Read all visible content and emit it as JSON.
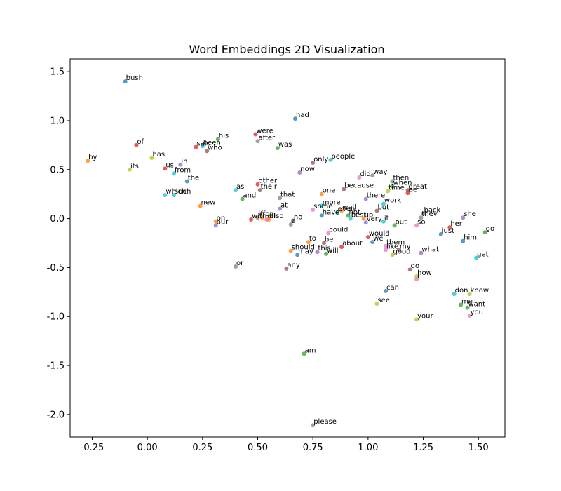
{
  "chart_data": {
    "type": "scatter",
    "title": "Word Embeddings 2D Visualization",
    "xlabel": "",
    "ylabel": "",
    "xlim": [
      -0.35,
      1.62
    ],
    "ylim": [
      -2.23,
      1.63
    ],
    "xticks": [
      -0.25,
      0.0,
      0.25,
      0.5,
      0.75,
      1.0,
      1.25,
      1.5
    ],
    "yticks": [
      -2.0,
      -1.5,
      -1.0,
      -0.5,
      0.0,
      0.5,
      1.0,
      1.5
    ],
    "grid": false,
    "palette": [
      "#1f77b4",
      "#ff7f0e",
      "#2ca02c",
      "#d62728",
      "#9467bd",
      "#8c564b",
      "#e377c2",
      "#7f7f7f",
      "#bcbd22",
      "#17becf"
    ],
    "points": [
      {
        "word": "bush",
        "x": -0.1,
        "y": 1.4,
        "color": "#1f77b4"
      },
      {
        "word": "had",
        "x": 0.67,
        "y": 1.02,
        "color": "#1f77b4"
      },
      {
        "word": "his",
        "x": 0.32,
        "y": 0.81,
        "color": "#2ca02c"
      },
      {
        "word": "were",
        "x": 0.49,
        "y": 0.86,
        "color": "#d62728"
      },
      {
        "word": "after",
        "x": 0.5,
        "y": 0.79,
        "color": "#7f7f7f"
      },
      {
        "word": "of",
        "x": -0.05,
        "y": 0.75,
        "color": "#d62728"
      },
      {
        "word": "been",
        "x": 0.25,
        "y": 0.74,
        "color": "#17becf"
      },
      {
        "word": "said",
        "x": 0.22,
        "y": 0.73,
        "color": "#d62728"
      },
      {
        "word": "who",
        "x": 0.27,
        "y": 0.69,
        "color": "#8c564b"
      },
      {
        "word": "was",
        "x": 0.59,
        "y": 0.72,
        "color": "#2ca02c"
      },
      {
        "word": "has",
        "x": 0.02,
        "y": 0.62,
        "color": "#bcbd22"
      },
      {
        "word": "by",
        "x": -0.27,
        "y": 0.59,
        "color": "#ff7f0e"
      },
      {
        "word": "in",
        "x": 0.15,
        "y": 0.55,
        "color": "#9467bd"
      },
      {
        "word": "only",
        "x": 0.75,
        "y": 0.57,
        "color": "#8c564b"
      },
      {
        "word": "people",
        "x": 0.83,
        "y": 0.6,
        "color": "#17becf"
      },
      {
        "word": "its",
        "x": -0.08,
        "y": 0.5,
        "color": "#bcbd22"
      },
      {
        "word": "us",
        "x": 0.08,
        "y": 0.51,
        "color": "#d62728"
      },
      {
        "word": "from",
        "x": 0.12,
        "y": 0.46,
        "color": "#17becf"
      },
      {
        "word": "now",
        "x": 0.69,
        "y": 0.47,
        "color": "#9467bd"
      },
      {
        "word": "did",
        "x": 0.96,
        "y": 0.42,
        "color": "#e377c2"
      },
      {
        "word": "way",
        "x": 1.02,
        "y": 0.44,
        "color": "#7f7f7f"
      },
      {
        "word": "the",
        "x": 0.18,
        "y": 0.38,
        "color": "#1f77b4"
      },
      {
        "word": "then",
        "x": 1.11,
        "y": 0.38,
        "color": "#7f7f7f"
      },
      {
        "word": "other",
        "x": 0.5,
        "y": 0.35,
        "color": "#d62728"
      },
      {
        "word": "when",
        "x": 1.11,
        "y": 0.33,
        "color": "#2ca02c"
      },
      {
        "word": "as",
        "x": 0.4,
        "y": 0.29,
        "color": "#17becf"
      },
      {
        "word": "their",
        "x": 0.51,
        "y": 0.29,
        "color": "#8c564b"
      },
      {
        "word": "because",
        "x": 0.89,
        "y": 0.3,
        "color": "#8c564b"
      },
      {
        "word": "time",
        "x": 1.09,
        "y": 0.28,
        "color": "#bcbd22"
      },
      {
        "word": "great",
        "x": 1.18,
        "y": 0.29,
        "color": "#8c564b"
      },
      {
        "word": "be",
        "x": 1.18,
        "y": 0.26,
        "color": "#d62728"
      },
      {
        "word": "which",
        "x": 0.08,
        "y": 0.24,
        "color": "#17becf"
      },
      {
        "word": "such",
        "x": 0.12,
        "y": 0.24,
        "color": "#17becf"
      },
      {
        "word": "one",
        "x": 0.79,
        "y": 0.25,
        "color": "#ff7f0e"
      },
      {
        "word": "that",
        "x": 0.6,
        "y": 0.21,
        "color": "#7f7f7f"
      },
      {
        "word": "and",
        "x": 0.43,
        "y": 0.2,
        "color": "#2ca02c"
      },
      {
        "word": "there",
        "x": 0.99,
        "y": 0.2,
        "color": "#9467bd"
      },
      {
        "word": "work",
        "x": 1.07,
        "y": 0.15,
        "color": "#17becf"
      },
      {
        "word": "new",
        "x": 0.24,
        "y": 0.13,
        "color": "#ff7f0e"
      },
      {
        "word": "more",
        "x": 0.79,
        "y": 0.13,
        "color": "#17becf"
      },
      {
        "word": "at",
        "x": 0.6,
        "y": 0.1,
        "color": "#9467bd"
      },
      {
        "word": "some",
        "x": 0.75,
        "y": 0.09,
        "color": "#e377c2"
      },
      {
        "word": "well",
        "x": 0.88,
        "y": 0.08,
        "color": "#ff7f0e"
      },
      {
        "word": "even",
        "x": 0.86,
        "y": 0.06,
        "color": "#17becf"
      },
      {
        "word": "but",
        "x": 1.04,
        "y": 0.08,
        "color": "#8c564b"
      },
      {
        "word": "back",
        "x": 1.25,
        "y": 0.05,
        "color": "#7f7f7f"
      },
      {
        "word": "have",
        "x": 0.79,
        "y": 0.03,
        "color": "#1f77b4"
      },
      {
        "word": "not",
        "x": 0.91,
        "y": 0.03,
        "color": "#2ca02c"
      },
      {
        "word": "they",
        "x": 1.24,
        "y": 0.01,
        "color": "#7f7f7f"
      },
      {
        "word": "she",
        "x": 1.43,
        "y": 0.01,
        "color": "#9467bd"
      },
      {
        "word": "if",
        "x": 0.5,
        "y": 0.01,
        "color": "#7f7f7f"
      },
      {
        "word": "for",
        "x": 0.52,
        "y": 0.01,
        "color": "#ff7f0e"
      },
      {
        "word": "best",
        "x": 0.92,
        "y": 0.0,
        "color": "#17becf"
      },
      {
        "word": "up",
        "x": 0.98,
        "y": 0.0,
        "color": "#ff7f0e"
      },
      {
        "word": "with",
        "x": 0.47,
        "y": -0.01,
        "color": "#d62728"
      },
      {
        "word": "all",
        "x": 0.54,
        "y": -0.01,
        "color": "#e377c2"
      },
      {
        "word": "also",
        "x": 0.55,
        "y": -0.01,
        "color": "#ff7f0e"
      },
      {
        "word": "no",
        "x": 0.66,
        "y": -0.02,
        "color": "#7f7f7f"
      },
      {
        "word": "very",
        "x": 0.99,
        "y": -0.04,
        "color": "#9467bd"
      },
      {
        "word": "it",
        "x": 1.07,
        "y": -0.03,
        "color": "#17becf"
      },
      {
        "word": "on",
        "x": 0.31,
        "y": -0.03,
        "color": "#ff7f0e"
      },
      {
        "word": "our",
        "x": 0.31,
        "y": -0.07,
        "color": "#9467bd"
      },
      {
        "word": "a",
        "x": 0.65,
        "y": -0.06,
        "color": "#7f7f7f"
      },
      {
        "word": "out",
        "x": 1.12,
        "y": -0.07,
        "color": "#2ca02c"
      },
      {
        "word": "so",
        "x": 1.22,
        "y": -0.07,
        "color": "#e377c2"
      },
      {
        "word": "her",
        "x": 1.37,
        "y": -0.09,
        "color": "#d62728"
      },
      {
        "word": "could",
        "x": 0.82,
        "y": -0.15,
        "color": "#e377c2"
      },
      {
        "word": "just",
        "x": 1.33,
        "y": -0.16,
        "color": "#1f77b4"
      },
      {
        "word": "go",
        "x": 1.53,
        "y": -0.14,
        "color": "#2ca02c"
      },
      {
        "word": "would",
        "x": 1.0,
        "y": -0.19,
        "color": "#d62728"
      },
      {
        "word": "to",
        "x": 0.73,
        "y": -0.24,
        "color": "#ff7f0e"
      },
      {
        "word": "be",
        "x": 0.8,
        "y": -0.25,
        "color": "#8c564b"
      },
      {
        "word": "we",
        "x": 1.02,
        "y": -0.24,
        "color": "#1f77b4"
      },
      {
        "word": "him",
        "x": 1.43,
        "y": -0.23,
        "color": "#1f77b4"
      },
      {
        "word": "them",
        "x": 1.08,
        "y": -0.28,
        "color": "#e377c2"
      },
      {
        "word": "about",
        "x": 0.88,
        "y": -0.29,
        "color": "#d62728"
      },
      {
        "word": "like",
        "x": 1.08,
        "y": -0.32,
        "color": "#e377c2"
      },
      {
        "word": "my",
        "x": 1.14,
        "y": -0.32,
        "color": "#8c564b"
      },
      {
        "word": "should",
        "x": 0.65,
        "y": -0.33,
        "color": "#ff7f0e"
      },
      {
        "word": "this",
        "x": 0.77,
        "y": -0.34,
        "color": "#9467bd"
      },
      {
        "word": "will",
        "x": 0.81,
        "y": -0.36,
        "color": "#2ca02c"
      },
      {
        "word": "what",
        "x": 1.24,
        "y": -0.35,
        "color": "#9467bd"
      },
      {
        "word": "may",
        "x": 0.68,
        "y": -0.37,
        "color": "#1f77b4"
      },
      {
        "word": "good",
        "x": 1.11,
        "y": -0.37,
        "color": "#bcbd22"
      },
      {
        "word": "get",
        "x": 1.49,
        "y": -0.4,
        "color": "#17becf"
      },
      {
        "word": "or",
        "x": 0.4,
        "y": -0.49,
        "color": "#7f7f7f"
      },
      {
        "word": "any",
        "x": 0.63,
        "y": -0.51,
        "color": "#8c564b"
      },
      {
        "word": "do",
        "x": 1.19,
        "y": -0.52,
        "color": "#8c564b"
      },
      {
        "word": "how",
        "x": 1.22,
        "y": -0.59,
        "color": "#bcbd22"
      },
      {
        "word": "i",
        "x": 1.22,
        "y": -0.62,
        "color": "#e377c2"
      },
      {
        "word": "can",
        "x": 1.08,
        "y": -0.74,
        "color": "#1f77b4"
      },
      {
        "word": "don",
        "x": 1.39,
        "y": -0.77,
        "color": "#17becf"
      },
      {
        "word": "know",
        "x": 1.46,
        "y": -0.77,
        "color": "#bcbd22"
      },
      {
        "word": "see",
        "x": 1.04,
        "y": -0.87,
        "color": "#bcbd22"
      },
      {
        "word": "me",
        "x": 1.42,
        "y": -0.88,
        "color": "#2ca02c"
      },
      {
        "word": "want",
        "x": 1.45,
        "y": -0.91,
        "color": "#2ca02c"
      },
      {
        "word": "you",
        "x": 1.46,
        "y": -0.99,
        "color": "#e377c2"
      },
      {
        "word": "your",
        "x": 1.22,
        "y": -1.03,
        "color": "#bcbd22"
      },
      {
        "word": "am",
        "x": 0.71,
        "y": -1.38,
        "color": "#2ca02c"
      },
      {
        "word": "please",
        "x": 0.75,
        "y": -2.11,
        "color": "#7f7f7f"
      }
    ]
  }
}
